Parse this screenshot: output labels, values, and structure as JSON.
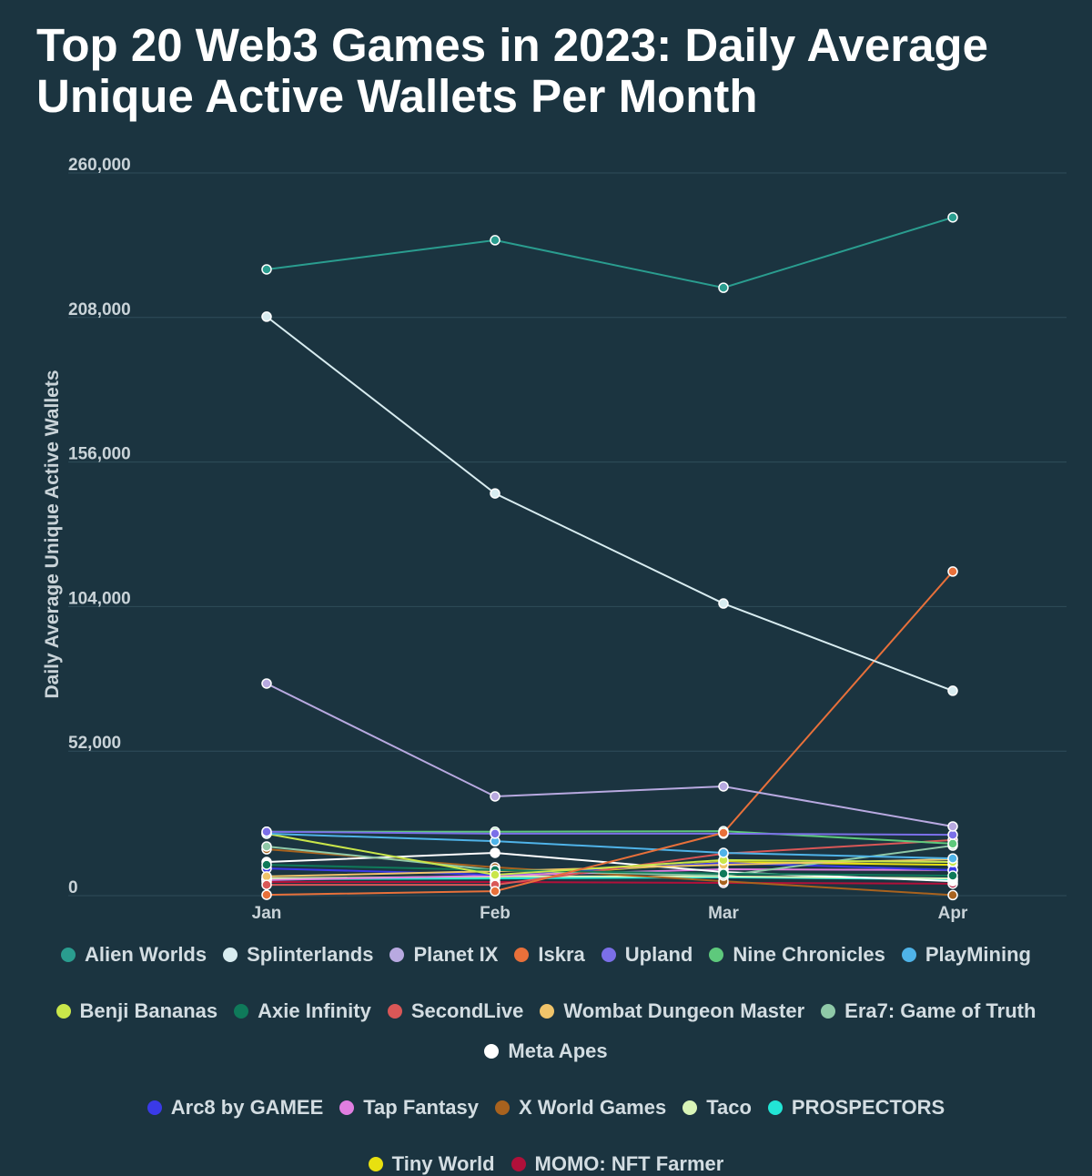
{
  "chart_data": {
    "type": "line",
    "title": "Top 20 Web3 Games in 2023: Daily Average Unique Active Wallets Per Month",
    "xlabel": "",
    "ylabel": "Daily Average Unique Active Wallets",
    "categories": [
      "Jan",
      "Feb",
      "Mar",
      "Apr"
    ],
    "ylim": [
      0,
      260000
    ],
    "yticks": [
      "0",
      "52,000",
      "104,000",
      "156,000",
      "208,000",
      "260,000"
    ],
    "ytick_values": [
      0,
      52000,
      104000,
      156000,
      208000,
      260000
    ],
    "grid": true,
    "legend_position": "bottom",
    "series": [
      {
        "name": "Alien Worlds",
        "color": "#2a9d8f",
        "values": [
          225300,
          235800,
          218700,
          244000
        ]
      },
      {
        "name": "Splinterlands",
        "color": "#d8ecf0",
        "values": [
          208300,
          144700,
          105100,
          73700
        ]
      },
      {
        "name": "Planet IX",
        "color": "#b8a9e0",
        "values": [
          76300,
          35700,
          39300,
          24900
        ]
      },
      {
        "name": "Iskra",
        "color": "#e8703a",
        "values": [
          300,
          1600,
          22600,
          116600
        ]
      },
      {
        "name": "Upland",
        "color": "#7b6fe8",
        "values": [
          23000,
          22300,
          22300,
          21900
        ]
      },
      {
        "name": "Nine Chronicles",
        "color": "#5ec97c",
        "values": [
          23000,
          23000,
          23200,
          18700
        ]
      },
      {
        "name": "PlayMining",
        "color": "#4fb3e8",
        "values": [
          22300,
          19600,
          15400,
          13400
        ]
      },
      {
        "name": "Benji Bananas",
        "color": "#c9e64a",
        "values": [
          22300,
          7500,
          12800,
          12100
        ]
      },
      {
        "name": "Axie Infinity",
        "color": "#0f7a5a",
        "values": [
          11100,
          9200,
          7900,
          7200
        ]
      },
      {
        "name": "SecondLive",
        "color": "#d95757",
        "values": [
          3900,
          3900,
          15100,
          20000
        ]
      },
      {
        "name": "Wombat Dungeon Master",
        "color": "#f0c46a",
        "values": [
          6900,
          8800,
          11100,
          13100
        ]
      },
      {
        "name": "Era7: Game of Truth",
        "color": "#8fc9a8",
        "values": [
          17700,
          9200,
          7200,
          18000
        ]
      },
      {
        "name": "Meta Apes",
        "color": "#ffffff",
        "values": [
          12100,
          15400,
          8500,
          5200
        ]
      },
      {
        "name": "Arc8 by GAMEE",
        "color": "#3a3ae8",
        "values": [
          9800,
          7500,
          11800,
          9200
        ]
      },
      {
        "name": "Tap Fantasy",
        "color": "#e07ee0",
        "values": [
          5600,
          7200,
          9500,
          9200
        ]
      },
      {
        "name": "X World Games",
        "color": "#a8621e",
        "values": [
          16700,
          10200,
          5200,
          200
        ]
      },
      {
        "name": "Taco",
        "color": "#d9f5b8",
        "values": [
          6200,
          6900,
          6900,
          6200
        ]
      },
      {
        "name": "PROSPECTORS",
        "color": "#22e5d5",
        "values": [
          5900,
          6200,
          6600,
          5900
        ]
      },
      {
        "name": "Tiny World",
        "color": "#e8e010",
        "values": [
          5900,
          6600,
          12100,
          11100
        ]
      },
      {
        "name": "MOMO: NFT Farmer",
        "color": "#b0103a",
        "values": [
          4900,
          4900,
          4600,
          4300
        ]
      }
    ]
  }
}
